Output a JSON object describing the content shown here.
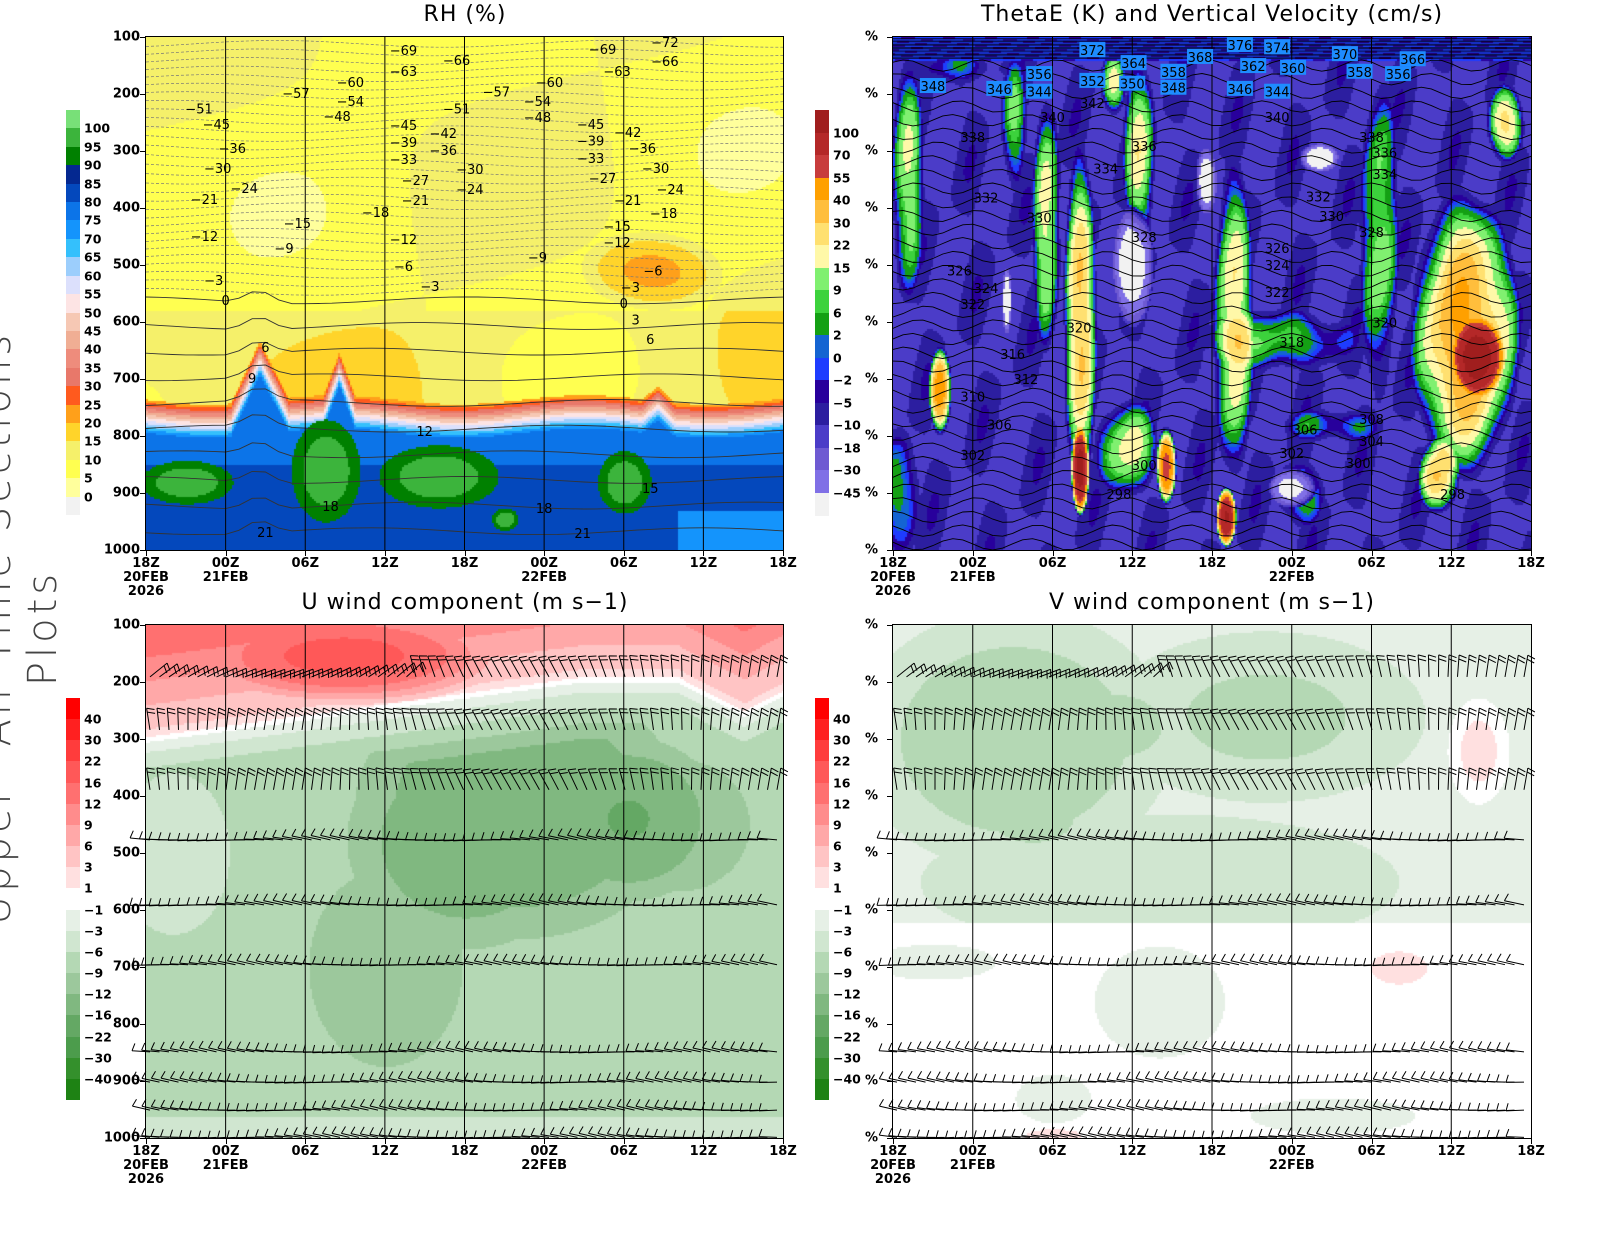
{
  "side_title": "Upper−Air Time Sections Plots",
  "x_tick_labels": [
    [
      "18Z",
      "20FEB",
      "2026"
    ],
    [
      "00Z",
      "21FEB"
    ],
    [
      "06Z"
    ],
    [
      "12Z"
    ],
    [
      "18Z"
    ],
    [
      "00Z",
      "22FEB"
    ],
    [
      "06Z"
    ],
    [
      "12Z"
    ],
    [
      "18Z"
    ]
  ],
  "chart_data": [
    {
      "type": "heatmap",
      "title": "RH (%)",
      "xlabel": "",
      "ylabel": "",
      "x_hours": [
        0,
        48
      ],
      "x_ticks_hours": [
        0,
        6,
        12,
        18,
        24,
        30,
        36,
        42,
        48
      ],
      "ylim": [
        1000,
        100
      ],
      "y_tick_labels": [
        "100",
        "200",
        "300",
        "400",
        "500",
        "600",
        "700",
        "800",
        "900",
        "1000"
      ],
      "colorbar": {
        "labels": [
          "100",
          "95",
          "90",
          "85",
          "80",
          "75",
          "70",
          "65",
          "60",
          "55",
          "50",
          "45",
          "40",
          "35",
          "30",
          "25",
          "20",
          "15",
          "10",
          "5",
          "0"
        ],
        "levels_ascending": [
          0,
          5,
          10,
          15,
          20,
          25,
          30,
          35,
          40,
          45,
          50,
          55,
          60,
          65,
          70,
          75,
          80,
          85,
          90,
          95,
          100
        ],
        "colors_ascending": [
          "#f2f2f2",
          "#ffff9c",
          "#ffff50",
          "#f5f06a",
          "#ffd42a",
          "#ffa01a",
          "#ff5a1e",
          "#e8786a",
          "#ee8c7c",
          "#f0ae94",
          "#f6c8b4",
          "#fde4e4",
          "#dce0fc",
          "#9ccefc",
          "#34c0fc",
          "#1494fc",
          "#0c74e8",
          "#0448bc",
          "#042890",
          "#008000",
          "#3cb43c",
          "#78e078"
        ]
      },
      "contour_labels": [
        [
          19.4,
          123,
          "-69"
        ],
        [
          39.1,
          109,
          "-72"
        ],
        [
          23.4,
          140,
          "-66"
        ],
        [
          39.1,
          142,
          "-66"
        ],
        [
          34.4,
          121,
          "-69"
        ],
        [
          19.4,
          160,
          "-63"
        ],
        [
          35.5,
          160,
          "-63"
        ],
        [
          15.4,
          179,
          "-60"
        ],
        [
          30.4,
          179,
          "-60"
        ],
        [
          11.3,
          198,
          "-57"
        ],
        [
          26.4,
          196,
          "-57"
        ],
        [
          15.4,
          212,
          "-54"
        ],
        [
          29.5,
          212,
          "-54"
        ],
        [
          4.0,
          225,
          "-51"
        ],
        [
          23.4,
          225,
          "-51"
        ],
        [
          14.4,
          239,
          "-48"
        ],
        [
          29.5,
          240,
          "-48"
        ],
        [
          5.3,
          253,
          "-45"
        ],
        [
          19.4,
          254,
          "-45"
        ],
        [
          33.5,
          253,
          "-45"
        ],
        [
          22.4,
          268,
          "-42"
        ],
        [
          36.3,
          267,
          "-42"
        ],
        [
          19.4,
          284,
          "-39"
        ],
        [
          33.5,
          282,
          "-39"
        ],
        [
          6.5,
          295,
          "-36"
        ],
        [
          22.4,
          298,
          "-36"
        ],
        [
          37.4,
          295,
          "-36"
        ],
        [
          19.4,
          314,
          "-33"
        ],
        [
          33.5,
          312,
          "-33"
        ],
        [
          5.4,
          330,
          "-30"
        ],
        [
          24.4,
          332,
          "-30"
        ],
        [
          38.4,
          330,
          "-30"
        ],
        [
          20.3,
          351,
          "-27"
        ],
        [
          34.4,
          347,
          "-27"
        ],
        [
          7.4,
          365,
          "-24"
        ],
        [
          24.4,
          367,
          "-24"
        ],
        [
          39.5,
          367,
          "-24"
        ],
        [
          4.4,
          384,
          "-21"
        ],
        [
          20.3,
          386,
          "-21"
        ],
        [
          36.3,
          386,
          "-21"
        ],
        [
          17.3,
          407,
          "-18"
        ],
        [
          39.0,
          409,
          "-18"
        ],
        [
          11.4,
          426,
          "-15"
        ],
        [
          35.5,
          432,
          "-15"
        ],
        [
          4.4,
          449,
          "-12"
        ],
        [
          19.4,
          454,
          "-12"
        ],
        [
          35.5,
          460,
          "-12"
        ],
        [
          10.4,
          470,
          "-9"
        ],
        [
          29.5,
          486,
          "-9"
        ],
        [
          19.4,
          502,
          "-6"
        ],
        [
          38.2,
          510,
          "-6"
        ],
        [
          5.1,
          526,
          "-3"
        ],
        [
          21.4,
          537,
          "-3"
        ],
        [
          36.5,
          539,
          "-3"
        ],
        [
          6.0,
          561,
          "0"
        ],
        [
          36.0,
          567,
          "0"
        ],
        [
          36.9,
          596,
          "3"
        ],
        [
          9.0,
          644,
          "6"
        ],
        [
          38.0,
          630,
          "6"
        ],
        [
          8.0,
          698,
          "9"
        ],
        [
          21.0,
          791,
          "12"
        ],
        [
          38.0,
          891,
          "15"
        ],
        [
          13.9,
          923,
          "18"
        ],
        [
          30.0,
          926,
          "18"
        ],
        [
          9.0,
          968,
          "21"
        ],
        [
          32.9,
          970,
          "21"
        ]
      ]
    },
    {
      "type": "heatmap",
      "title": "ThetaE (K) and Vertical Velocity (cm/s)",
      "xlabel": "",
      "ylabel": "",
      "x_hours": [
        0,
        48
      ],
      "x_ticks_hours": [
        0,
        6,
        12,
        18,
        24,
        30,
        36,
        42,
        48
      ],
      "ylim": [
        1000,
        100
      ],
      "y_tick_labels": [
        "%",
        "%",
        "%",
        "%",
        "%",
        "%",
        "%",
        "%",
        "%",
        "%"
      ],
      "colorbar": {
        "labels": [
          "100",
          "70",
          "55",
          "40",
          "30",
          "22",
          "15",
          "9",
          "6",
          "2",
          "0",
          "-2",
          "-5",
          "-10",
          "-18",
          "-30",
          "-45"
        ],
        "levels_ascending": [
          -45,
          -30,
          -18,
          -10,
          -5,
          -2,
          0,
          2,
          6,
          9,
          15,
          22,
          30,
          40,
          55,
          70,
          100
        ],
        "colors_ascending": [
          "#f2f2f2",
          "#8070e6",
          "#6e5ad2",
          "#4b3cc8",
          "#2c1ea0",
          "#28009c",
          "#1e3cff",
          "#1464d2",
          "#14a014",
          "#3cd23c",
          "#80f070",
          "#fff8a8",
          "#ffe070",
          "#ffbe3c",
          "#ffa000",
          "#c83c3c",
          "#b42828",
          "#a01e1e"
        ]
      },
      "contour_labels": [
        [
          15.0,
          123,
          "372"
        ],
        [
          18.1,
          146,
          "364"
        ],
        [
          23.1,
          135,
          "368"
        ],
        [
          26.1,
          114,
          "376"
        ],
        [
          28.9,
          118,
          "374"
        ],
        [
          34.0,
          130,
          "370"
        ],
        [
          39.1,
          139,
          "366"
        ],
        [
          27.1,
          151,
          "362"
        ],
        [
          30.1,
          154,
          "360"
        ],
        [
          35.1,
          161,
          "358"
        ],
        [
          38.0,
          165,
          "356"
        ],
        [
          11.0,
          165,
          "356"
        ],
        [
          21.1,
          161,
          "358"
        ],
        [
          15.0,
          177,
          "352"
        ],
        [
          18.0,
          182,
          "350"
        ],
        [
          3.0,
          186,
          "348"
        ],
        [
          8.0,
          191,
          "346"
        ],
        [
          11.0,
          196,
          "344"
        ],
        [
          21.1,
          189,
          "348"
        ],
        [
          26.1,
          191,
          "346"
        ],
        [
          28.9,
          196,
          "344"
        ],
        [
          15.0,
          216,
          "342"
        ],
        [
          12.0,
          240,
          "340"
        ],
        [
          28.9,
          240,
          "340"
        ],
        [
          6.0,
          275,
          "338"
        ],
        [
          36.0,
          275,
          "338"
        ],
        [
          18.9,
          291,
          "336"
        ],
        [
          37.0,
          303,
          "336"
        ],
        [
          16.0,
          331,
          "334"
        ],
        [
          37.0,
          340,
          "334"
        ],
        [
          7.0,
          382,
          "332"
        ],
        [
          32.0,
          380,
          "332"
        ],
        [
          11.0,
          417,
          "330"
        ],
        [
          33.0,
          414,
          "330"
        ],
        [
          18.9,
          451,
          "328"
        ],
        [
          36.0,
          442,
          "328"
        ],
        [
          5.0,
          510,
          "326"
        ],
        [
          28.9,
          470,
          "326"
        ],
        [
          7.0,
          540,
          "324"
        ],
        [
          28.9,
          500,
          "324"
        ],
        [
          6.0,
          568,
          "322"
        ],
        [
          28.9,
          547,
          "322"
        ],
        [
          14.0,
          610,
          "320"
        ],
        [
          37.0,
          601,
          "320"
        ],
        [
          30.0,
          635,
          "318"
        ],
        [
          9.0,
          656,
          "316"
        ],
        [
          10.0,
          700,
          "312"
        ],
        [
          6.0,
          731,
          "310"
        ],
        [
          36.0,
          770,
          "308"
        ],
        [
          8.0,
          780,
          "306"
        ],
        [
          31.0,
          789,
          "306"
        ],
        [
          36.0,
          809,
          "304"
        ],
        [
          6.0,
          833,
          "302"
        ],
        [
          30.0,
          830,
          "302"
        ],
        [
          18.9,
          851,
          "300"
        ],
        [
          35.0,
          847,
          "300"
        ],
        [
          17.0,
          902,
          "298"
        ],
        [
          42.1,
          902,
          "298"
        ]
      ]
    },
    {
      "type": "heatmap",
      "title": "U wind component (m s−1)",
      "xlabel": "",
      "ylabel": "",
      "x_hours": [
        0,
        48
      ],
      "x_ticks_hours": [
        0,
        6,
        12,
        18,
        24,
        30,
        36,
        42,
        48
      ],
      "ylim": [
        1000,
        100
      ],
      "y_tick_labels": [
        "100",
        "200",
        "300",
        "400",
        "500",
        "600",
        "700",
        "800",
        "900",
        "1000"
      ],
      "barb_levels": [
        170,
        263,
        368,
        477,
        591,
        696,
        849,
        902,
        951,
        999
      ],
      "colorbar": {
        "labels": [
          "40",
          "30",
          "22",
          "16",
          "12",
          "9",
          "6",
          "3",
          "1",
          "-1",
          "-3",
          "-6",
          "-9",
          "-12",
          "-16",
          "-22",
          "-30",
          "-40"
        ],
        "levels_ascending": [
          -40,
          -30,
          -22,
          -16,
          -12,
          -9,
          -6,
          -3,
          -1,
          1,
          3,
          6,
          9,
          12,
          16,
          22,
          30,
          40
        ],
        "colors_ascending": [
          "#1e8214",
          "#34902c",
          "#4c9c4c",
          "#64a864",
          "#80b880",
          "#9cc89c",
          "#b4d8b4",
          "#d0e6d0",
          "#e6f0e6",
          "#ffffff",
          "#ffe0e0",
          "#ffc4c4",
          "#ffa8a8",
          "#ff8c8c",
          "#ff7070",
          "#ff5858",
          "#ff3c3c",
          "#ff2020",
          "#ff0000"
        ]
      }
    },
    {
      "type": "heatmap",
      "title": "V wind component (m s−1)",
      "xlabel": "",
      "ylabel": "",
      "x_hours": [
        0,
        48
      ],
      "x_ticks_hours": [
        0,
        6,
        12,
        18,
        24,
        30,
        36,
        42,
        48
      ],
      "ylim": [
        1000,
        100
      ],
      "y_tick_labels": [
        "%",
        "%",
        "%",
        "%",
        "%",
        "%",
        "%",
        "%",
        "%",
        "%"
      ],
      "barb_levels": [
        170,
        263,
        368,
        477,
        591,
        696,
        849,
        902,
        951,
        999
      ],
      "colorbar": {
        "labels": [
          "40",
          "30",
          "22",
          "16",
          "12",
          "9",
          "6",
          "3",
          "1",
          "-1",
          "-3",
          "-6",
          "-9",
          "-12",
          "-16",
          "-22",
          "-30",
          "-40"
        ],
        "levels_ascending": [
          -40,
          -30,
          -22,
          -16,
          -12,
          -9,
          -6,
          -3,
          -1,
          1,
          3,
          6,
          9,
          12,
          16,
          22,
          30,
          40
        ],
        "colors_ascending": [
          "#1e8214",
          "#34902c",
          "#4c9c4c",
          "#64a864",
          "#80b880",
          "#9cc89c",
          "#b4d8b4",
          "#d0e6d0",
          "#e6f0e6",
          "#ffffff",
          "#ffe0e0",
          "#ffc4c4",
          "#ffa8a8",
          "#ff8c8c",
          "#ff7070",
          "#ff5858",
          "#ff3c3c",
          "#ff2020",
          "#ff0000"
        ]
      }
    }
  ]
}
